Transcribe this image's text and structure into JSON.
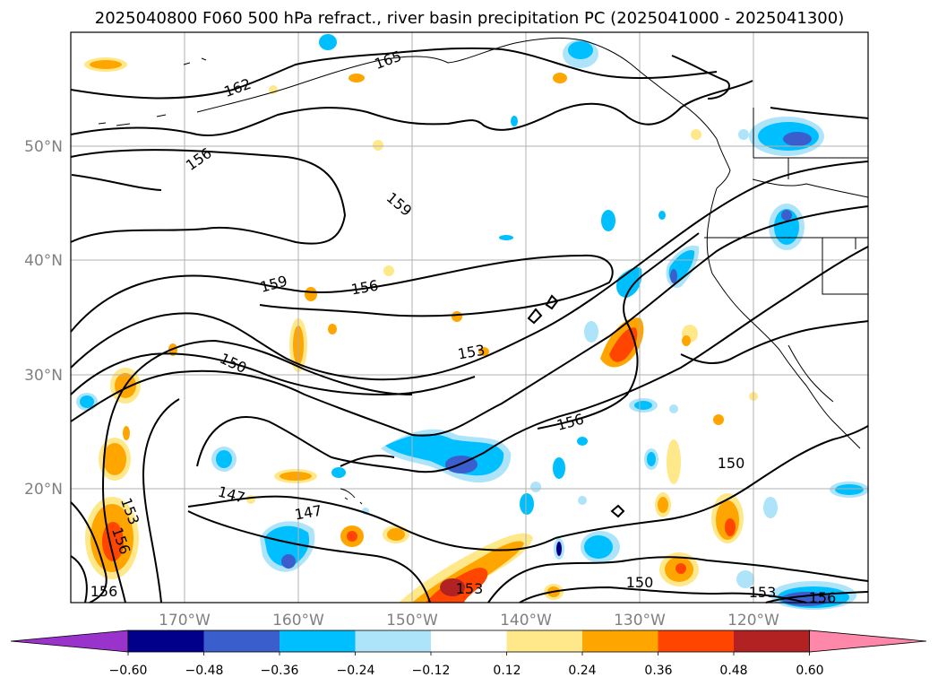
{
  "title": "2025040800 F060 500 hPa refract., river basin precipitation PC (2025041000 - 2025041300)",
  "map": {
    "lat_labels": [
      "50°N",
      "40°N",
      "30°N",
      "20°N"
    ],
    "lon_labels": [
      "170°W",
      "160°W",
      "150°W",
      "140°W",
      "130°W",
      "120°W"
    ],
    "contour_labels": [
      "165",
      "162",
      "156",
      "159",
      "159",
      "156",
      "150",
      "153",
      "156",
      "147",
      "147",
      "153",
      "156",
      "156",
      "150",
      "153",
      "150",
      "153",
      "156"
    ]
  },
  "colorbar": {
    "ticks": [
      "−0.60",
      "−0.48",
      "−0.36",
      "−0.24",
      "−0.12",
      "0.12",
      "0.24",
      "0.36",
      "0.48",
      "0.60"
    ],
    "colors": [
      "#9933cc",
      "#00008b",
      "#3a5fcd",
      "#00bfff",
      "#aee4fa",
      "#ffffff",
      "#ffe88a",
      "#ffa500",
      "#ff4500",
      "#b22222",
      "#ff88aa"
    ]
  }
}
